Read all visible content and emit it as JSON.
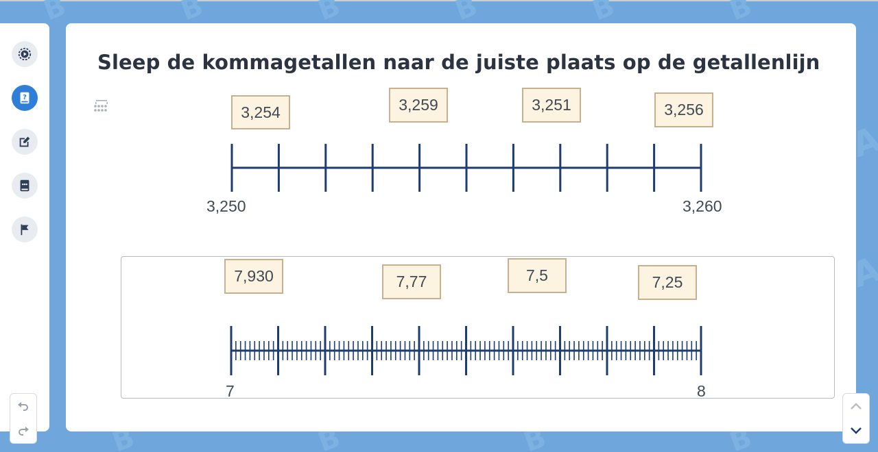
{
  "title": "Sleep de kommagetallen naar de juiste plaats op de getallenlijn",
  "sidebar": {
    "items": [
      {
        "icon": "play-circle-icon",
        "active": false
      },
      {
        "icon": "book-question-icon",
        "active": true
      },
      {
        "icon": "edit-icon",
        "active": false
      },
      {
        "icon": "chat-book-icon",
        "active": false
      },
      {
        "icon": "flag-icon",
        "active": false
      }
    ]
  },
  "exercise1": {
    "chips": [
      "3,254",
      "3,259",
      "3,251",
      "3,256"
    ],
    "line": {
      "start_label": "3,250",
      "end_label": "3,260",
      "major_ticks": 11,
      "minor_ticks_per_segment": 0
    }
  },
  "exercise2": {
    "chips": [
      "7,930",
      "7,77",
      "7,5",
      "7,25"
    ],
    "line": {
      "start_label": "7",
      "end_label": "8",
      "major_ticks": 11,
      "minor_ticks_per_segment": 9
    }
  },
  "colors": {
    "background": "#6fa6dc",
    "accent": "#2f7fd8",
    "line": "#1d3d70",
    "chip_fill": "#fdf3e1",
    "chip_border": "#c7b08f"
  }
}
